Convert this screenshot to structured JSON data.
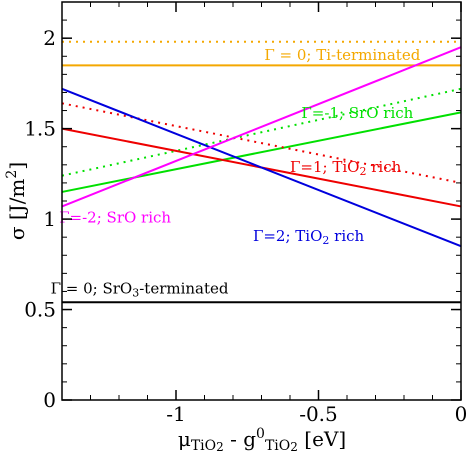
{
  "chart_data": {
    "type": "line",
    "title": "",
    "xlabel": {
      "parts": [
        {
          "t": "μ"
        },
        {
          "t": "TiO",
          "sub": true
        },
        {
          "t": "2",
          "sub2": true
        },
        {
          "t": " - g"
        },
        {
          "t": "0",
          "sup": true
        },
        {
          "t": "TiO",
          "sub": true
        },
        {
          "t": "2",
          "sub2": true
        },
        {
          "t": " [eV]"
        }
      ]
    },
    "ylabel": {
      "parts": [
        {
          "t": "σ [J/m"
        },
        {
          "t": "2",
          "sup": true
        },
        {
          "t": "]"
        }
      ]
    },
    "xlim": [
      -1.4,
      0.0
    ],
    "ylim": [
      0.0,
      2.2
    ],
    "xticks": [
      -1,
      -0.5,
      0
    ],
    "xtick_labels": [
      "-1",
      "-0.5",
      "0"
    ],
    "yticks": [
      0,
      0.5,
      1,
      1.5,
      2
    ],
    "ytick_labels": [
      "0",
      "0.5",
      "1",
      "1.5",
      "2"
    ],
    "grid": false,
    "legend": "none",
    "series": [
      {
        "color": "#f4a800",
        "dash": "solid",
        "x": [
          -1.4,
          0.0
        ],
        "y": [
          1.85,
          1.85
        ]
      },
      {
        "color": "#f4a800",
        "dash": "dotted",
        "x": [
          -1.4,
          0.0
        ],
        "y": [
          1.98,
          1.98
        ]
      },
      {
        "color": "#000000",
        "dash": "solid",
        "x": [
          -1.4,
          0.0
        ],
        "y": [
          0.54,
          0.54
        ]
      },
      {
        "color": "#00e000",
        "dash": "solid",
        "x": [
          -1.4,
          0.0
        ],
        "y": [
          1.15,
          1.59
        ]
      },
      {
        "color": "#00e000",
        "dash": "dotted",
        "x": [
          -1.4,
          0.0
        ],
        "y": [
          1.24,
          1.72
        ]
      },
      {
        "color": "#ee0000",
        "dash": "solid",
        "x": [
          -1.4,
          0.0
        ],
        "y": [
          1.5,
          1.07
        ]
      },
      {
        "color": "#ee0000",
        "dash": "dotted",
        "x": [
          -1.4,
          0.0
        ],
        "y": [
          1.64,
          1.2
        ]
      },
      {
        "color": "#0000dd",
        "dash": "solid",
        "x": [
          -1.4,
          0.0
        ],
        "y": [
          1.72,
          0.85
        ]
      },
      {
        "color": "#ff00ff",
        "dash": "solid",
        "x": [
          -1.4,
          0.0
        ],
        "y": [
          1.07,
          1.95
        ]
      }
    ],
    "annotations": [
      {
        "x": -0.69,
        "y": 1.88,
        "color": "#f4a800",
        "parts": [
          {
            "t": "Γ = 0; Ti-terminated"
          }
        ]
      },
      {
        "x": -0.56,
        "y": 1.56,
        "color": "#00e000",
        "parts": [
          {
            "t": "Γ=-1; SrO rich"
          }
        ]
      },
      {
        "x": -0.6,
        "y": 1.26,
        "color": "#ee0000",
        "parts": [
          {
            "t": "Γ=1; TiO"
          },
          {
            "t": "2",
            "sub": true
          },
          {
            "t": " rich"
          }
        ]
      },
      {
        "x": -1.41,
        "y": 0.98,
        "color": "#ff00ff",
        "parts": [
          {
            "t": "Γ=-2; SrO rich"
          }
        ]
      },
      {
        "x": -0.73,
        "y": 0.88,
        "color": "#0000dd",
        "parts": [
          {
            "t": "Γ=2; TiO"
          },
          {
            "t": "2",
            "sub": true
          },
          {
            "t": " rich"
          }
        ]
      },
      {
        "x": -1.44,
        "y": 0.59,
        "color": "#000000",
        "parts": [
          {
            "t": "Γ = 0; SrO"
          },
          {
            "t": "3",
            "sub": true
          },
          {
            "t": "-terminated"
          }
        ]
      }
    ]
  }
}
